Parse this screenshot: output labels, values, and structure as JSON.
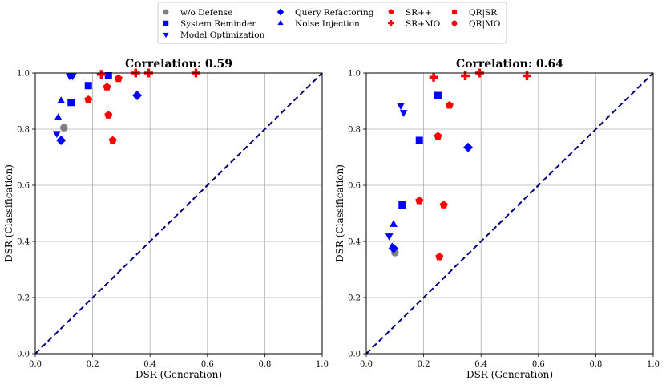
{
  "legend": {
    "items": [
      {
        "label": "w/o Defense",
        "marker": "circle",
        "color": "#808080"
      },
      {
        "label": "System Reminder",
        "marker": "square",
        "color": "#0000ff"
      },
      {
        "label": "Model Optimization",
        "marker": "triangle-down",
        "color": "#0000ff"
      },
      {
        "label": "Query Refactoring",
        "marker": "diamond",
        "color": "#0000ff"
      },
      {
        "label": "Noise Injection",
        "marker": "triangle-up",
        "color": "#0000ff"
      },
      {
        "label": "SR++",
        "marker": "pentagon",
        "color": "#ff0000"
      },
      {
        "label": "SR+MO",
        "marker": "plus",
        "color": "#ff0000"
      },
      {
        "label": "QR|SR",
        "marker": "hexagon",
        "color": "#ff0000"
      },
      {
        "label": "QR|MO",
        "marker": "octagon",
        "color": "#ff0000"
      }
    ]
  },
  "chart_data": [
    {
      "type": "scatter",
      "title": "Correlation: 0.59",
      "xlabel": "DSR (Generation)",
      "ylabel": "DSR (Classification)",
      "xlim": [
        0,
        1
      ],
      "ylim": [
        0,
        1
      ],
      "xticks": [
        "0.0",
        "0.2",
        "0.4",
        "0.6",
        "0.8",
        "1.0"
      ],
      "yticks": [
        "0.0",
        "0.2",
        "0.4",
        "0.6",
        "0.8",
        "1.0"
      ],
      "grid": true,
      "reference_line": {
        "from": [
          0,
          0
        ],
        "to": [
          1,
          1
        ],
        "style": "dashed",
        "color": "#000080"
      },
      "series": [
        {
          "name": "w/o Defense",
          "points": [
            [
              0.1,
              0.805
            ]
          ]
        },
        {
          "name": "System Reminder",
          "points": [
            [
              0.125,
              0.895
            ],
            [
              0.185,
              0.955
            ],
            [
              0.255,
              0.99
            ]
          ]
        },
        {
          "name": "Model Optimization",
          "points": [
            [
              0.075,
              0.785
            ],
            [
              0.12,
              0.99
            ],
            [
              0.13,
              0.99
            ]
          ]
        },
        {
          "name": "Query Refactoring",
          "points": [
            [
              0.09,
              0.76
            ],
            [
              0.355,
              0.92
            ]
          ]
        },
        {
          "name": "Noise Injection",
          "points": [
            [
              0.08,
              0.84
            ],
            [
              0.09,
              0.9
            ]
          ]
        },
        {
          "name": "SR++",
          "points": [
            [
              0.185,
              0.905
            ],
            [
              0.25,
              0.95
            ],
            [
              0.255,
              0.85
            ],
            [
              0.27,
              0.76
            ],
            [
              0.29,
              0.98
            ]
          ]
        },
        {
          "name": "SR+MO",
          "points": [
            [
              0.23,
              0.995
            ],
            [
              0.35,
              1.0
            ],
            [
              0.395,
              1.0
            ],
            [
              0.56,
              1.0
            ]
          ]
        },
        {
          "name": "QR|SR",
          "points": []
        },
        {
          "name": "QR|MO",
          "points": []
        }
      ]
    },
    {
      "type": "scatter",
      "title": "Correlation: 0.64",
      "xlabel": "DSR (Generation)",
      "ylabel": "DSR (Classification)",
      "xlim": [
        0,
        1
      ],
      "ylim": [
        0,
        1
      ],
      "xticks": [
        "0.0",
        "0.2",
        "0.4",
        "0.6",
        "0.8",
        "1.0"
      ],
      "yticks": [
        "0.0",
        "0.2",
        "0.4",
        "0.6",
        "0.8",
        "1.0"
      ],
      "grid": true,
      "reference_line": {
        "from": [
          0,
          0
        ],
        "to": [
          1,
          1
        ],
        "style": "dashed",
        "color": "#000080"
      },
      "series": [
        {
          "name": "w/o Defense",
          "points": [
            [
              0.1,
              0.36
            ]
          ]
        },
        {
          "name": "System Reminder",
          "points": [
            [
              0.125,
              0.53
            ],
            [
              0.185,
              0.76
            ],
            [
              0.25,
              0.92
            ]
          ]
        },
        {
          "name": "Model Optimization",
          "points": [
            [
              0.08,
              0.42
            ],
            [
              0.12,
              0.885
            ],
            [
              0.13,
              0.86
            ]
          ]
        },
        {
          "name": "Query Refactoring",
          "points": [
            [
              0.095,
              0.375
            ],
            [
              0.355,
              0.735
            ]
          ]
        },
        {
          "name": "Noise Injection",
          "points": [
            [
              0.09,
              0.38
            ],
            [
              0.095,
              0.46
            ]
          ]
        },
        {
          "name": "SR++",
          "points": [
            [
              0.185,
              0.545
            ],
            [
              0.25,
              0.775
            ],
            [
              0.27,
              0.53
            ],
            [
              0.29,
              0.885
            ],
            [
              0.255,
              0.345
            ]
          ]
        },
        {
          "name": "SR+MO",
          "points": [
            [
              0.235,
              0.985
            ],
            [
              0.345,
              0.99
            ],
            [
              0.395,
              1.0
            ],
            [
              0.56,
              0.99
            ]
          ]
        },
        {
          "name": "QR|SR",
          "points": []
        },
        {
          "name": "QR|MO",
          "points": []
        }
      ]
    }
  ]
}
